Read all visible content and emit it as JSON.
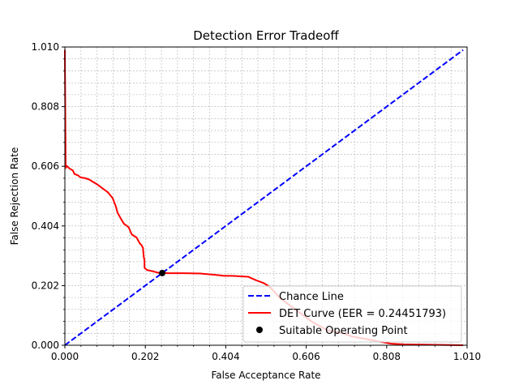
{
  "chart_data": {
    "type": "line",
    "title": "Detection Error Tradeoff",
    "xlabel": "False Acceptance Rate",
    "ylabel": "False Rejection Rate",
    "xlim": [
      0.0,
      1.01
    ],
    "ylim": [
      0.0,
      1.01
    ],
    "x_ticks": [
      "0.000",
      "0.202",
      "0.404",
      "0.606",
      "0.808",
      "1.010"
    ],
    "y_ticks": [
      "0.000",
      "0.202",
      "0.404",
      "0.606",
      "0.808",
      "1.010"
    ],
    "x_tick_values": [
      0.0,
      0.202,
      0.404,
      0.606,
      0.808,
      1.01
    ],
    "y_tick_values": [
      0.0,
      0.202,
      0.404,
      0.606,
      0.808,
      1.01
    ],
    "grid": true,
    "legend_position": "bottom-right",
    "series": [
      {
        "name": "Chance Line",
        "style": "dashed",
        "color": "#0000ff",
        "x": [
          0.0,
          1.0
        ],
        "y": [
          0.0,
          1.0
        ]
      },
      {
        "name": "DET Curve (EER = 0.24451793)",
        "style": "solid",
        "color": "#ff0000",
        "x": [
          0.0,
          0.0,
          0.002,
          0.004,
          0.012,
          0.02,
          0.024,
          0.032,
          0.04,
          0.05,
          0.06,
          0.072,
          0.082,
          0.096,
          0.108,
          0.12,
          0.128,
          0.132,
          0.14,
          0.148,
          0.16,
          0.168,
          0.18,
          0.188,
          0.192,
          0.196,
          0.198,
          0.2,
          0.2,
          0.206,
          0.222,
          0.236,
          0.246,
          0.26,
          0.3,
          0.34,
          0.38,
          0.4,
          0.42,
          0.46,
          0.48,
          0.5,
          0.512,
          0.52,
          0.54,
          0.56,
          0.6,
          0.62,
          0.66,
          0.7,
          0.72,
          0.76,
          0.8,
          0.82,
          0.85,
          0.9,
          0.95,
          1.0
        ],
        "y": [
          1.0,
          0.99,
          0.6,
          0.608,
          0.598,
          0.592,
          0.58,
          0.576,
          0.568,
          0.566,
          0.562,
          0.552,
          0.544,
          0.53,
          0.518,
          0.498,
          0.47,
          0.45,
          0.43,
          0.412,
          0.4,
          0.375,
          0.365,
          0.345,
          0.34,
          0.33,
          0.3,
          0.286,
          0.262,
          0.255,
          0.25,
          0.245,
          0.245,
          0.244,
          0.244,
          0.243,
          0.238,
          0.235,
          0.235,
          0.232,
          0.22,
          0.21,
          0.2,
          0.19,
          0.16,
          0.14,
          0.1,
          0.08,
          0.05,
          0.04,
          0.03,
          0.02,
          0.01,
          0.005,
          0.003,
          0.002,
          0.001,
          0.0
        ]
      }
    ],
    "marker": {
      "name": "Suitable Operating Point",
      "color": "#000000",
      "x": 0.2445,
      "y": 0.2445
    }
  }
}
